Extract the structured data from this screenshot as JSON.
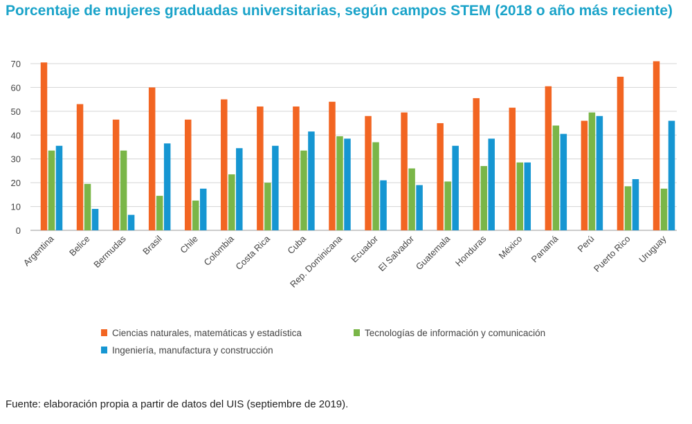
{
  "chart_data": {
    "type": "bar",
    "title": "Porcentaje de mujeres graduadas universitarias, según campos STEM (2018 o año más reciente)",
    "xlabel": "",
    "ylabel": "",
    "ylim": [
      0,
      70
    ],
    "yticks": [
      0,
      10,
      20,
      30,
      40,
      50,
      60,
      70
    ],
    "grid": true,
    "legend_position": "bottom",
    "categories": [
      "Argentina",
      "Belice",
      "Bermudas",
      "Brasil",
      "Chile",
      "Colombia",
      "Costa Rica",
      "Cuba",
      "Rep. Dominicana",
      "Ecuador",
      "El Salvador",
      "Guatemala",
      "Honduras",
      "México",
      "Panamá",
      "Perú",
      "Puerto Rico",
      "Uruguay"
    ],
    "series": [
      {
        "name": "Ciencias naturales, matemáticas y estadística",
        "color": "#f26522",
        "values": [
          70.5,
          53,
          46.5,
          60,
          46.5,
          55,
          52,
          52,
          54,
          48,
          49.5,
          45,
          55.5,
          51.5,
          60.5,
          46,
          64.5,
          71
        ]
      },
      {
        "name": "Tecnologías de información y comunicación",
        "color": "#7ab648",
        "values": [
          33.5,
          19.5,
          33.5,
          14.5,
          12.5,
          23.5,
          20,
          33.5,
          39.5,
          37,
          26,
          20.5,
          27,
          28.5,
          44,
          49.5,
          18.5,
          17.5
        ]
      },
      {
        "name": "Ingeniería, manufactura y construcción",
        "color": "#1696d2",
        "values": [
          35.5,
          9,
          6.5,
          36.5,
          17.5,
          34.5,
          35.5,
          41.5,
          38.5,
          21,
          19,
          35.5,
          38.5,
          28.5,
          40.5,
          48,
          21.5,
          46
        ]
      }
    ]
  },
  "footer": {
    "source": "Fuente: elaboración propia a partir de datos del UIS (septiembre de 2019)."
  }
}
